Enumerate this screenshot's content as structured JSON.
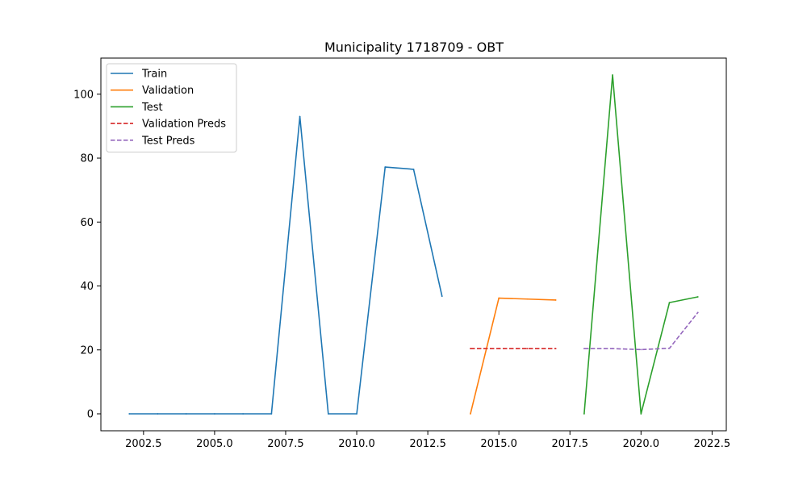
{
  "chart_data": {
    "type": "line",
    "title": "Municipality 1718709 - OBT",
    "xlabel": "",
    "ylabel": "",
    "xlim": [
      2001,
      2023
    ],
    "ylim": [
      -5.3,
      111.3
    ],
    "x_ticks": [
      2002.5,
      2005.0,
      2007.5,
      2010.0,
      2012.5,
      2015.0,
      2017.5,
      2020.0,
      2022.5
    ],
    "x_tick_labels": [
      "2002.5",
      "2005.0",
      "2007.5",
      "2010.0",
      "2012.5",
      "2015.0",
      "2017.5",
      "2020.0",
      "2022.5"
    ],
    "y_ticks": [
      0,
      20,
      40,
      60,
      80,
      100
    ],
    "y_tick_labels": [
      "0",
      "20",
      "40",
      "60",
      "80",
      "100"
    ],
    "grid": false,
    "legend_position": "top-left",
    "series": [
      {
        "name": "Train",
        "color": "#1f77b4",
        "dashed": false,
        "x": [
          2002,
          2003,
          2004,
          2005,
          2006,
          2007,
          2008,
          2009,
          2010,
          2011,
          2012,
          2013
        ],
        "y": [
          0,
          0,
          0,
          0,
          0,
          0,
          93,
          0,
          0,
          77.2,
          76.5,
          36.8
        ]
      },
      {
        "name": "Validation",
        "color": "#ff7f0e",
        "dashed": false,
        "x": [
          2014,
          2015,
          2016,
          2017
        ],
        "y": [
          0,
          36.2,
          35.9,
          35.6
        ]
      },
      {
        "name": "Test",
        "color": "#2ca02c",
        "dashed": false,
        "x": [
          2018,
          2019,
          2020,
          2021,
          2022
        ],
        "y": [
          0,
          106,
          0,
          34.8,
          36.6
        ]
      },
      {
        "name": "Validation Preds",
        "color": "#d62728",
        "dashed": true,
        "x": [
          2014,
          2015,
          2016,
          2017
        ],
        "y": [
          20.4,
          20.4,
          20.4,
          20.4
        ]
      },
      {
        "name": "Test Preds",
        "color": "#9467bd",
        "dashed": true,
        "x": [
          2018,
          2019,
          2020,
          2021,
          2022
        ],
        "y": [
          20.4,
          20.4,
          20.1,
          20.5,
          31.7
        ]
      }
    ]
  }
}
